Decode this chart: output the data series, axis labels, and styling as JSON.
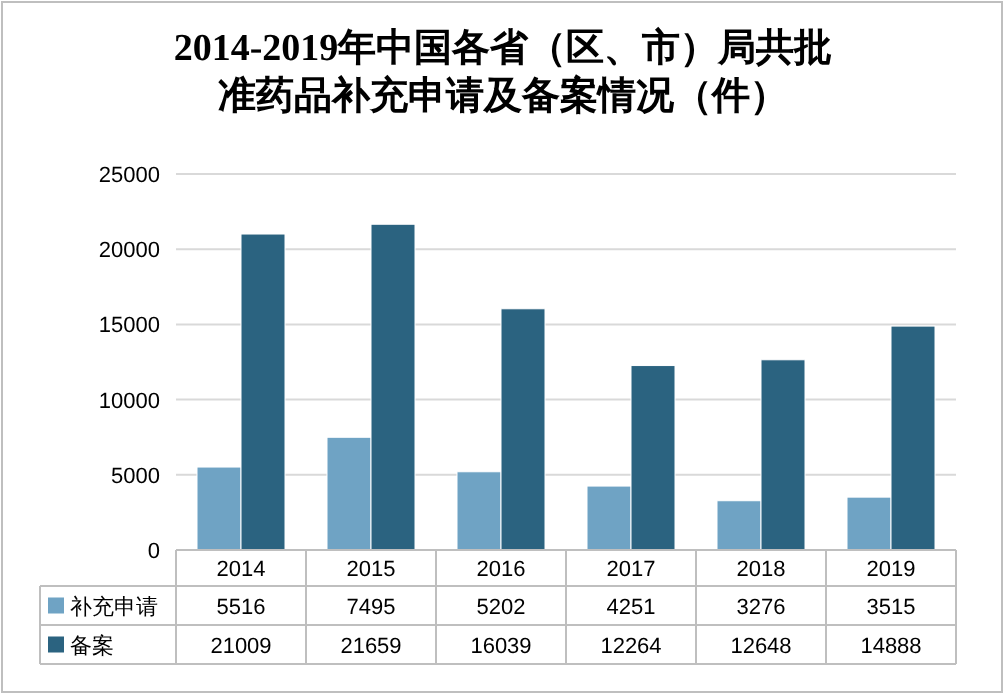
{
  "chart_data": {
    "type": "bar",
    "title": "2014-2019年中国各省（区、市）局共批准药品补充申请及备案情况（件）",
    "categories": [
      "2014",
      "2015",
      "2016",
      "2017",
      "2018",
      "2019"
    ],
    "series": [
      {
        "name": "补充申请",
        "color": "#6fa3c4",
        "values": [
          5516,
          7495,
          5202,
          4251,
          3276,
          3515
        ]
      },
      {
        "name": "备案",
        "color": "#2b6380",
        "values": [
          21009,
          21659,
          16039,
          12264,
          12648,
          14888
        ]
      }
    ],
    "ylim": [
      0,
      25000
    ],
    "yticks": [
      0,
      5000,
      10000,
      15000,
      20000,
      25000
    ],
    "grid": "y",
    "data_labels": true,
    "legend": "bottom"
  }
}
